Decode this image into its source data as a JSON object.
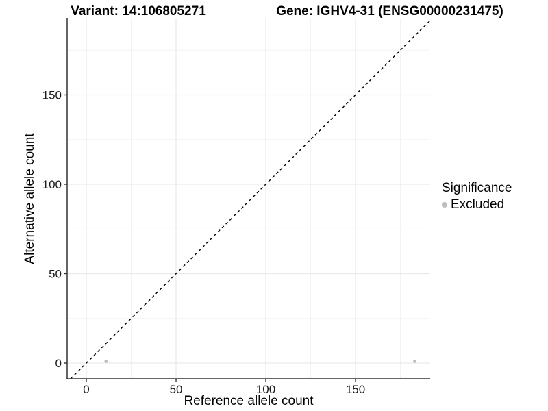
{
  "titles": {
    "variant": "Variant: 14:106805271",
    "gene": "Gene: IGHV4-31 (ENSG00000231475)"
  },
  "chart_data": {
    "type": "scatter",
    "xlabel": "Reference allele count",
    "ylabel": "Alternative allele count",
    "x_ticks": [
      0,
      50,
      100,
      150
    ],
    "y_ticks": [
      0,
      50,
      100,
      150
    ],
    "x_minor_ticks": [
      25,
      75,
      125,
      175
    ],
    "y_minor_ticks": [
      25,
      75,
      125,
      175
    ],
    "xlim": [
      -10.7,
      191.6
    ],
    "ylim": [
      -8.8,
      192.7
    ],
    "grid": true,
    "legend_position": "right",
    "series": [
      {
        "name": "Excluded",
        "marker": "circle",
        "color": "#bdbdbd",
        "points": [
          [
            11,
            1
          ],
          [
            183,
            1
          ]
        ]
      }
    ],
    "reference_line": {
      "type": "identity",
      "slope": 1,
      "intercept": 0,
      "style": "dashed",
      "color": "#000000"
    }
  },
  "legend": {
    "title": "Significance",
    "entries": [
      {
        "label": "Excluded",
        "color": "#bdbdbd"
      }
    ]
  },
  "colors": {
    "background": "#ffffff",
    "axis_line": "#333333",
    "tick_label": "#1a1a1a",
    "grid_major": "#e9e9e9",
    "grid_minor": "#f3f3f3",
    "point": "#bdbdbd",
    "dashed_line": "#000000"
  }
}
